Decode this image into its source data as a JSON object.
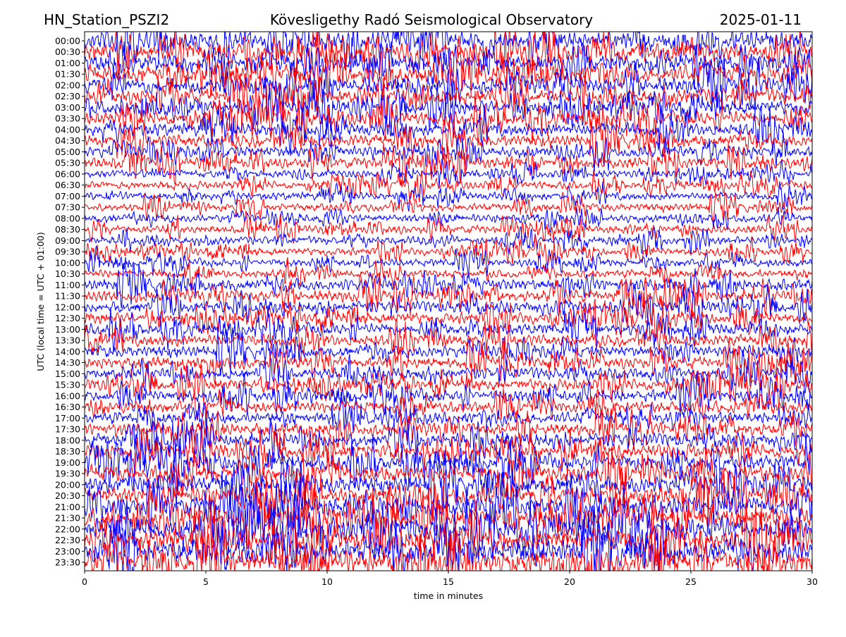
{
  "chart_data": {
    "type": "helicorder",
    "title_left": "HN_Station_PSZI2",
    "title": "Kövesligethy Radó Seismological Observatory",
    "title_right": "2025-01-11",
    "xlabel": "time in minutes",
    "ylabel": "UTC (local time = UTC + 01:00)",
    "categories": [
      "00:00",
      "00:30",
      "01:00",
      "01:30",
      "02:00",
      "02:30",
      "03:00",
      "03:30",
      "04:00",
      "04:30",
      "05:00",
      "05:30",
      "06:00",
      "06:30",
      "07:00",
      "07:30",
      "08:00",
      "08:30",
      "09:00",
      "09:30",
      "10:00",
      "10:30",
      "11:00",
      "11:30",
      "12:00",
      "12:30",
      "13:00",
      "13:30",
      "14:00",
      "14:30",
      "15:00",
      "15:30",
      "16:00",
      "16:30",
      "17:00",
      "17:30",
      "18:00",
      "18:30",
      "19:00",
      "19:30",
      "20:00",
      "20:30",
      "21:00",
      "21:30",
      "22:00",
      "22:30",
      "23:00",
      "23:30"
    ],
    "row_colors": [
      "#0000ff",
      "#ff0000"
    ],
    "xlim": [
      0,
      30
    ],
    "xticks": [
      0,
      5,
      10,
      15,
      20,
      25,
      30
    ]
  }
}
